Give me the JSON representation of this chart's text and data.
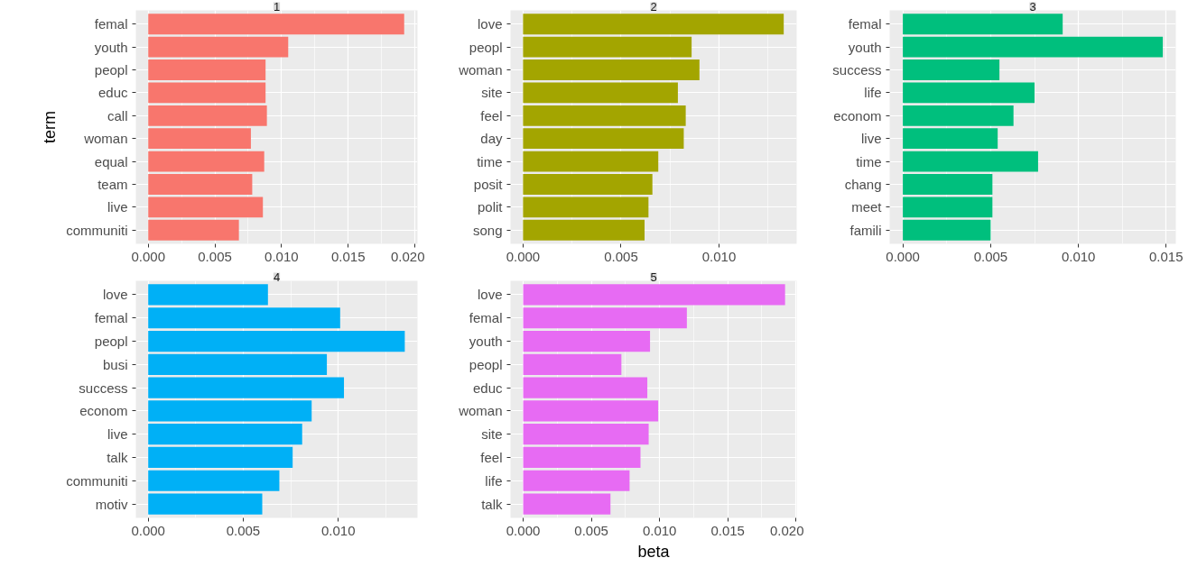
{
  "chart_data": [
    {
      "type": "bar",
      "orientation": "horizontal",
      "title": "1",
      "ylabel": "term",
      "grid": true,
      "categories": [
        "femal",
        "youth",
        "peopl",
        "educ",
        "call",
        "woman",
        "equal",
        "team",
        "live",
        "communiti"
      ],
      "series": [
        {
          "color": "#f8766d",
          "values": [
            0.0192,
            0.0105,
            0.0088,
            0.0088,
            0.0089,
            0.0077,
            0.0087,
            0.0078,
            0.0086,
            0.0068
          ]
        }
      ],
      "xlim": [
        -0.00093,
        0.0202
      ],
      "xticks": [
        {
          "value": 0,
          "label": "0.000"
        },
        {
          "value": 0.005,
          "label": "0.005"
        },
        {
          "value": 0.01,
          "label": "0.010"
        },
        {
          "value": 0.015,
          "label": "0.015"
        },
        {
          "value": 0.02,
          "label": "0.020"
        }
      ]
    },
    {
      "type": "bar",
      "orientation": "horizontal",
      "title": "2",
      "grid": true,
      "categories": [
        "love",
        "peopl",
        "woman",
        "site",
        "feel",
        "day",
        "time",
        "posit",
        "polit",
        "song"
      ],
      "series": [
        {
          "color": "#a3a500",
          "values": [
            0.0133,
            0.0086,
            0.009,
            0.0079,
            0.0083,
            0.0082,
            0.0069,
            0.0066,
            0.0064,
            0.0062
          ]
        }
      ],
      "xlim": [
        -0.00064,
        0.01396
      ],
      "xticks": [
        {
          "value": 0,
          "label": "0.000"
        },
        {
          "value": 0.005,
          "label": "0.005"
        },
        {
          "value": 0.01,
          "label": "0.010"
        }
      ]
    },
    {
      "type": "bar",
      "orientation": "horizontal",
      "title": "3",
      "grid": true,
      "categories": [
        "femal",
        "youth",
        "success",
        "life",
        "econom",
        "live",
        "time",
        "chang",
        "meet",
        "famili"
      ],
      "series": [
        {
          "color": "#00bf7d",
          "values": [
            0.0091,
            0.0148,
            0.0055,
            0.0075,
            0.0063,
            0.0054,
            0.0077,
            0.0051,
            0.0051,
            0.005
          ]
        }
      ],
      "xlim": [
        -0.00075,
        0.01554
      ],
      "xticks": [
        {
          "value": 0,
          "label": "0.000"
        },
        {
          "value": 0.005,
          "label": "0.005"
        },
        {
          "value": 0.01,
          "label": "0.010"
        },
        {
          "value": 0.015,
          "label": "0.015"
        }
      ]
    },
    {
      "type": "bar",
      "orientation": "horizontal",
      "title": "4",
      "grid": true,
      "categories": [
        "love",
        "femal",
        "peopl",
        "busi",
        "success",
        "econom",
        "live",
        "talk",
        "communiti",
        "motiv"
      ],
      "series": [
        {
          "color": "#00b0f6",
          "values": [
            0.0063,
            0.0101,
            0.0135,
            0.0094,
            0.0103,
            0.0086,
            0.0081,
            0.0076,
            0.0069,
            0.006
          ]
        }
      ],
      "xlim": [
        -0.00065,
        0.01417
      ],
      "xticks": [
        {
          "value": 0,
          "label": "0.000"
        },
        {
          "value": 0.005,
          "label": "0.005"
        },
        {
          "value": 0.01,
          "label": "0.010"
        }
      ]
    },
    {
      "type": "bar",
      "orientation": "horizontal",
      "title": "5",
      "xlabel": "beta",
      "grid": true,
      "categories": [
        "love",
        "femal",
        "youth",
        "peopl",
        "educ",
        "woman",
        "site",
        "feel",
        "life",
        "talk"
      ],
      "series": [
        {
          "color": "#e76bf3",
          "values": [
            0.0192,
            0.012,
            0.0093,
            0.0072,
            0.0091,
            0.0099,
            0.0092,
            0.0086,
            0.0078,
            0.0064
          ]
        }
      ],
      "xlim": [
        -0.00093,
        0.02005
      ],
      "xticks": [
        {
          "value": 0,
          "label": "0.000"
        },
        {
          "value": 0.005,
          "label": "0.005"
        },
        {
          "value": 0.01,
          "label": "0.010"
        },
        {
          "value": 0.015,
          "label": "0.015"
        },
        {
          "value": 0.02,
          "label": "0.020"
        }
      ]
    }
  ]
}
